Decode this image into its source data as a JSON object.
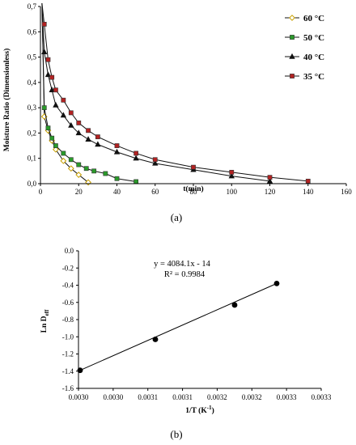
{
  "chart_data": [
    {
      "type": "line",
      "xlabel": "t(min)",
      "ylabel": "Moisture Ratio (Dimensionless)",
      "xlim": [
        0,
        160
      ],
      "ylim": [
        0,
        0.7
      ],
      "x_ticks": [
        "0",
        "20",
        "40",
        "60",
        "80",
        "100",
        "120",
        "140",
        "160"
      ],
      "y_ticks": [
        "0,0",
        "0,1",
        "0,2",
        "0,3",
        "0,4",
        "0,5",
        "0,6",
        "0,7"
      ],
      "legend": "right",
      "caption": "(a)",
      "series": [
        {
          "name": "60 °C",
          "color": "#c8a000",
          "marker": "diamond",
          "x": [
            2,
            4,
            6,
            8,
            12,
            16,
            20,
            25
          ],
          "y": [
            0.265,
            0.21,
            0.17,
            0.135,
            0.09,
            0.06,
            0.035,
            0.005
          ]
        },
        {
          "name": "50 °C",
          "color": "#2a9a2a",
          "marker": "square",
          "x": [
            2,
            4,
            6,
            8,
            12,
            16,
            20,
            24,
            28,
            34,
            40,
            50
          ],
          "y": [
            0.3,
            0.22,
            0.18,
            0.15,
            0.12,
            0.095,
            0.075,
            0.06,
            0.05,
            0.04,
            0.02,
            0.008
          ]
        },
        {
          "name": "40 °C",
          "color": "#111111",
          "marker": "triangle",
          "x": [
            2,
            4,
            6,
            8,
            12,
            16,
            20,
            25,
            30,
            40,
            50,
            60,
            80,
            100,
            120
          ],
          "y": [
            0.52,
            0.43,
            0.37,
            0.31,
            0.27,
            0.23,
            0.2,
            0.175,
            0.155,
            0.125,
            0.1,
            0.08,
            0.055,
            0.03,
            0.01
          ]
        },
        {
          "name": "35 °C",
          "color": "#b22222",
          "marker": "square",
          "x": [
            2,
            4,
            6,
            8,
            12,
            16,
            20,
            25,
            30,
            40,
            50,
            60,
            80,
            100,
            120,
            140
          ],
          "y": [
            0.63,
            0.49,
            0.42,
            0.37,
            0.33,
            0.28,
            0.24,
            0.21,
            0.185,
            0.15,
            0.12,
            0.095,
            0.065,
            0.045,
            0.025,
            0.01
          ]
        }
      ]
    },
    {
      "type": "scatter",
      "xlabel": "1/T (K",
      "xlabel_sup": "-1",
      "xlabel_end": ")",
      "ylabel": "Ln D",
      "ylabel_sub": "eff",
      "xlim": [
        0.003,
        0.0033
      ],
      "ylim": [
        -1.6,
        0
      ],
      "x_ticks": [
        "0.0030",
        "0.0030",
        "0.0031",
        "0.0031",
        "0.0032",
        "0.0032",
        "0.0033",
        "0.0033"
      ],
      "y_ticks": [
        "0.0",
        "-0.2",
        "-0.4",
        "-0.6",
        "-0.8",
        "-1.0",
        "-1.2",
        "-1.4",
        "-1.6"
      ],
      "equation": "y = 4084.1x - 14",
      "r_squared": "R² = 0.9984",
      "caption": "(b)",
      "points": {
        "x": [
          0.003002,
          0.003095,
          0.003193,
          0.003245
        ],
        "y": [
          -1.39,
          -1.03,
          -0.63,
          -0.38
        ]
      },
      "trendline": {
        "x": [
          0.003002,
          0.003245
        ],
        "y": [
          -1.39,
          -0.38
        ]
      }
    }
  ]
}
